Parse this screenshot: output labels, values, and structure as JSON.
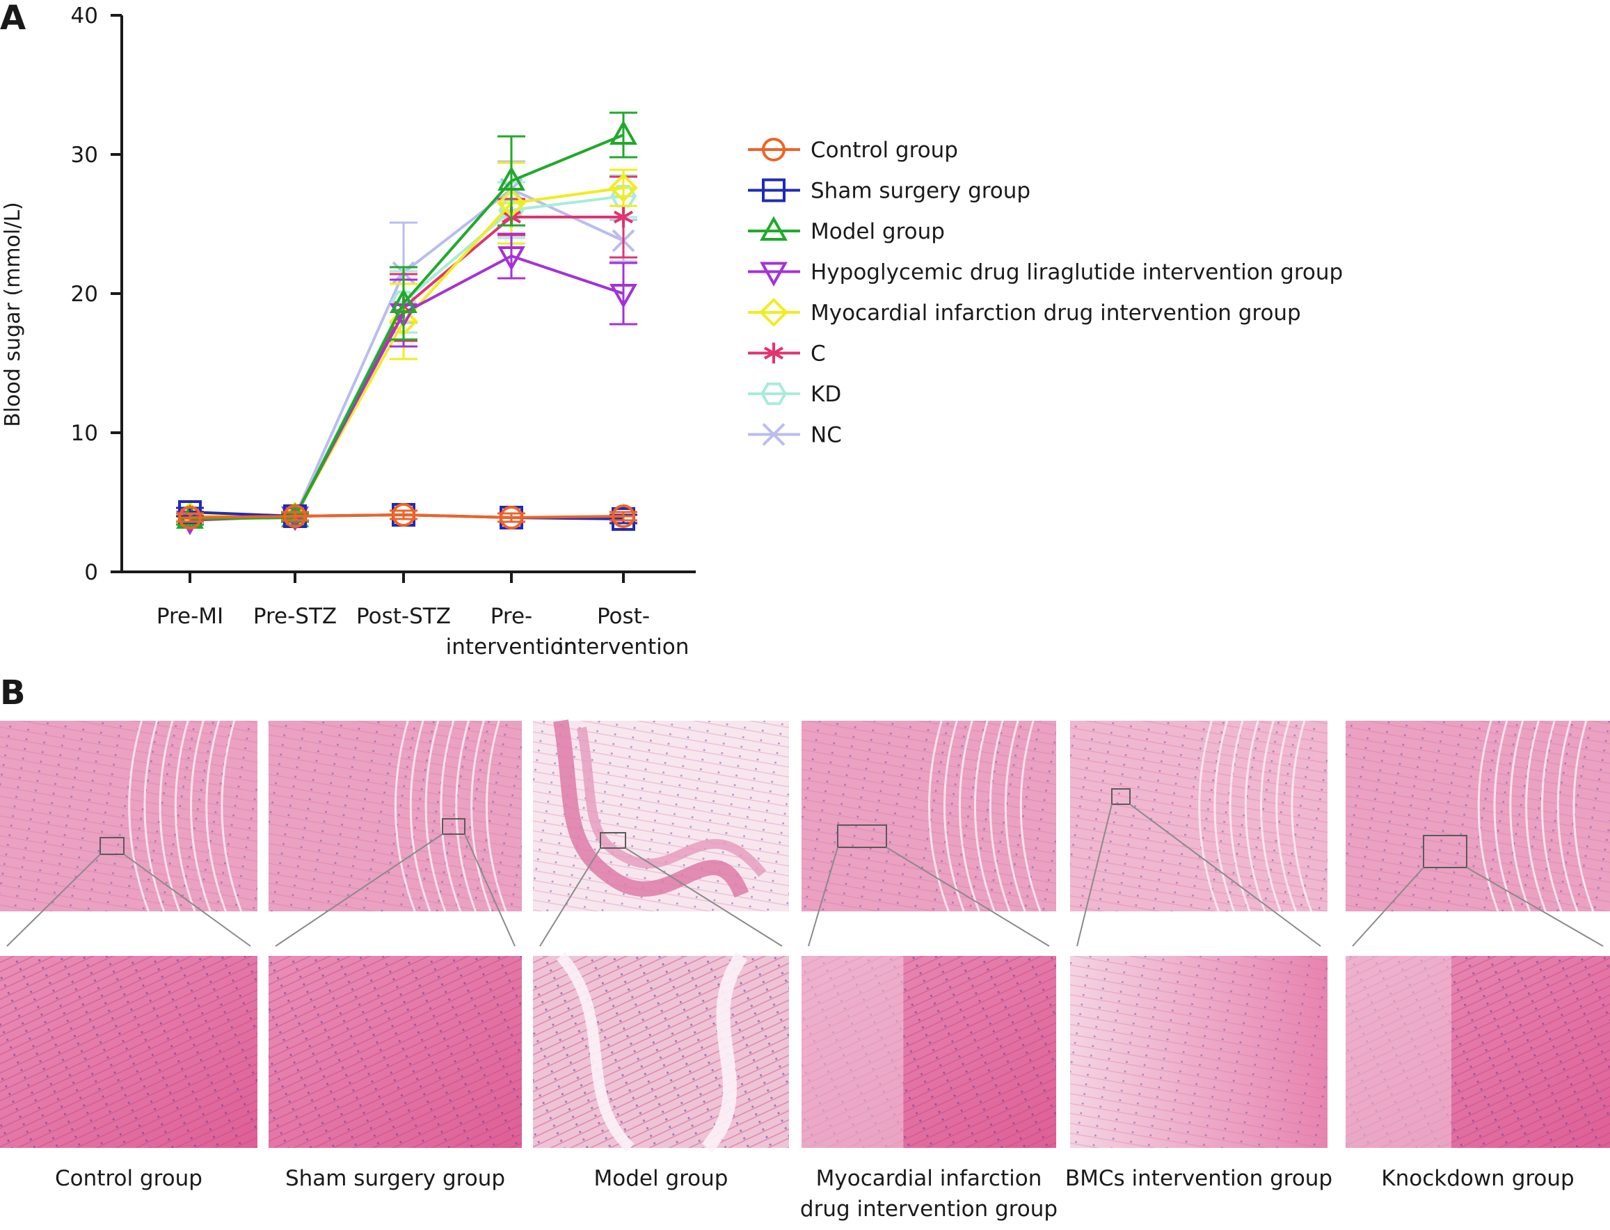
{
  "panel_a_letter": "A",
  "panel_b_letter": "B",
  "colors": {
    "control": "#ef6325",
    "sham": "#1f2bb8",
    "model": "#1faa2a",
    "liraglutide": "#a531d8",
    "mi_drug": "#f2ec1e",
    "c": "#e2336f",
    "kd": "#a8ecd9",
    "nc": "#b9bdf0",
    "tissue_light": "#f2c8dc",
    "tissue_dark": "#d9548c",
    "connector": "#8a8a8a"
  },
  "chart_data": {
    "type": "line",
    "ylabel": "Blood sugar (mmol/L)",
    "ylim": [
      0,
      40
    ],
    "yticks": [
      0,
      10,
      20,
      30,
      40
    ],
    "categories": [
      [
        "Pre-MI"
      ],
      [
        "Pre-STZ"
      ],
      [
        "Post-STZ"
      ],
      [
        "Pre-",
        "intervention"
      ],
      [
        "Post-",
        "intervention"
      ]
    ],
    "legend_position": "right",
    "series": [
      {
        "name": "Control group",
        "marker": "circle",
        "color": "#ef6325",
        "values": [
          3.9,
          4.0,
          4.1,
          3.9,
          4.0
        ],
        "err": [
          0.3,
          0.3,
          0.3,
          0.3,
          0.3
        ]
      },
      {
        "name": "Sham surgery group",
        "marker": "square",
        "color": "#1f2bb8",
        "values": [
          4.3,
          4.0,
          4.1,
          3.9,
          3.8
        ],
        "err": [
          0.3,
          0.3,
          0.3,
          0.3,
          0.3
        ]
      },
      {
        "name": "Model group",
        "marker": "triangle-up",
        "color": "#1faa2a",
        "values": [
          3.8,
          3.9,
          19.3,
          28.1,
          31.4
        ],
        "err": [
          0.4,
          0.3,
          2.6,
          3.2,
          1.6
        ]
      },
      {
        "name": "Hypoglycemic drug liraglutide intervention group",
        "marker": "triangle-down",
        "color": "#a531d8",
        "values": [
          3.7,
          4.0,
          18.6,
          22.7,
          20.0
        ],
        "err": [
          0.3,
          0.3,
          2.4,
          1.6,
          2.2
        ]
      },
      {
        "name": "Myocardial infarction drug intervention group",
        "marker": "diamond",
        "color": "#f2ec1e",
        "values": [
          4.0,
          4.0,
          18.0,
          26.5,
          27.6
        ],
        "err": [
          0.3,
          0.3,
          2.7,
          2.9,
          1.3
        ]
      },
      {
        "name": "C",
        "marker": "star",
        "color": "#e2336f",
        "values": [
          3.9,
          4.0,
          19.0,
          25.5,
          25.5
        ],
        "err": [
          0.3,
          0.3,
          2.4,
          1.3,
          2.9
        ]
      },
      {
        "name": "KD",
        "marker": "hexagon",
        "color": "#a8ecd9",
        "values": [
          3.9,
          4.0,
          19.4,
          26.0,
          27.0
        ],
        "err": [
          0.3,
          0.3,
          2.2,
          2.0,
          1.5
        ]
      },
      {
        "name": "NC",
        "marker": "x",
        "color": "#b9bdf0",
        "values": [
          3.9,
          4.0,
          21.5,
          27.5,
          23.8
        ],
        "err": [
          0.3,
          0.3,
          3.6,
          2.0,
          1.5
        ]
      }
    ]
  },
  "histology": [
    {
      "label_lines": [
        "Control group"
      ],
      "variant": "dense"
    },
    {
      "label_lines": [
        "Sham surgery group"
      ],
      "variant": "dense"
    },
    {
      "label_lines": [
        "Model group"
      ],
      "variant": "thin"
    },
    {
      "label_lines": [
        "Myocardial infarction",
        "drug intervention group"
      ],
      "variant": "mixed"
    },
    {
      "label_lines": [
        "BMCs intervention group"
      ],
      "variant": "pale"
    },
    {
      "label_lines": [
        "Knockdown group"
      ],
      "variant": "mixed"
    }
  ]
}
